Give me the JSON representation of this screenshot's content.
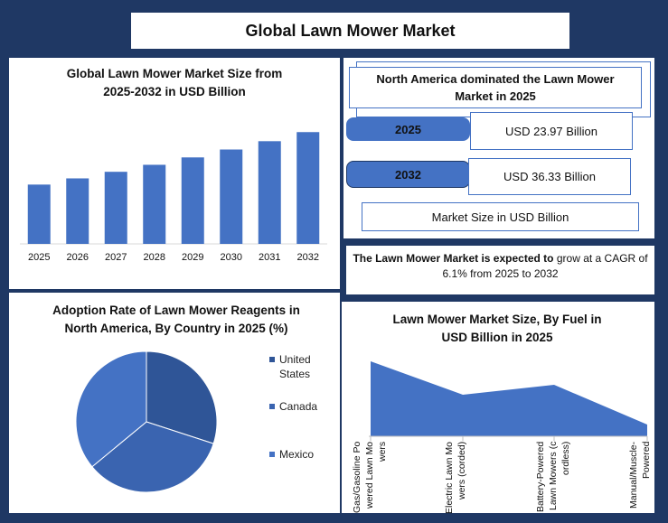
{
  "title": "Global Lawn Mower Market",
  "info": {
    "headline": "North America dominated the Lawn Mower Market in 2025",
    "stats": [
      {
        "label": "2025",
        "value": "USD 23.97 Billion"
      },
      {
        "label": "2032",
        "value": "USD 36.33 Billion"
      }
    ],
    "caption": "Market Size in USD Billion",
    "cagr_lead": "The Lawn Mower Market is expected to",
    "cagr_rest": "grow at a CAGR of 6.1% from 2025 to 2032"
  },
  "chart_data": [
    {
      "type": "bar",
      "title": "Global Lawn Mower Market Size from 2025-2032 in USD Billion",
      "categories": [
        "2025",
        "2026",
        "2027",
        "2028",
        "2029",
        "2030",
        "2031",
        "2032"
      ],
      "values": [
        23.97,
        25.43,
        26.98,
        28.63,
        30.37,
        32.23,
        34.19,
        36.33
      ],
      "color": "#4472c4",
      "ylim": [
        10,
        40
      ]
    },
    {
      "type": "pie",
      "title": "Adoption Rate of Lawn Mower Reagents in North America, By Country in 2025 (%)",
      "categories": [
        "United States",
        "Canada",
        "Mexico"
      ],
      "values": [
        30,
        34,
        36
      ],
      "colors": [
        "#2f5597",
        "#3a64b0",
        "#4472c4"
      ],
      "legend": "right"
    },
    {
      "type": "area",
      "title": "Lawn Mower Market Size,  By Fuel in USD Billion  in 2025",
      "categories": [
        "Gas/Gasoline Powered Lawn Mowers",
        "Electric Lawn Mowers (corded)",
        "Battery-Powered Lawn Mowers (cordless)",
        "Manual/Muscle-Powered"
      ],
      "values": [
        8.3,
        4.6,
        5.7,
        1.3
      ],
      "color": "#4472c4",
      "ylim": [
        0,
        9
      ]
    }
  ]
}
